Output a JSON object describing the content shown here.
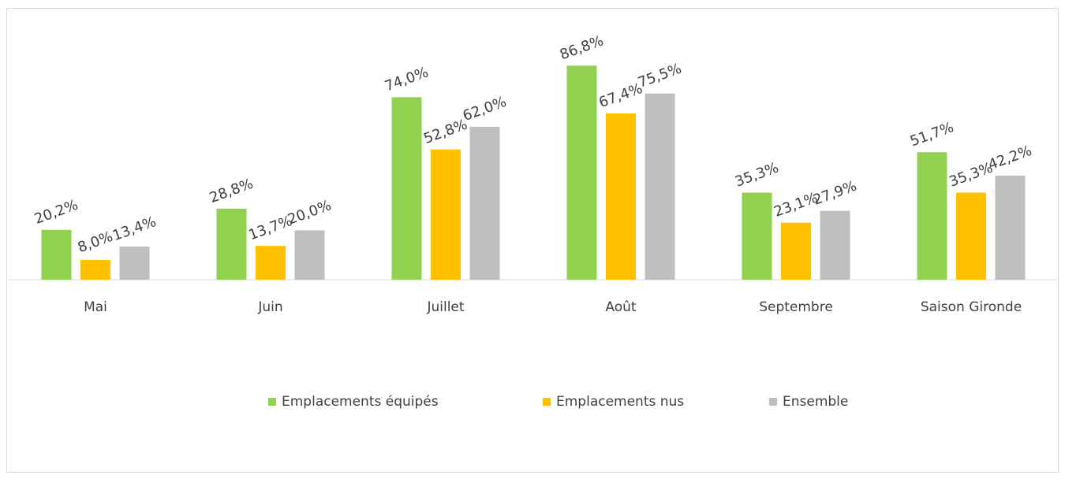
{
  "chart_data": {
    "type": "bar",
    "categories": [
      "Mai",
      "Juin",
      "Juillet",
      "Août",
      "Septembre",
      "Saison Gironde"
    ],
    "series": [
      {
        "name": "Emplacements équipés",
        "color": "#92d050",
        "values": [
          20.2,
          28.8,
          74.0,
          86.8,
          35.3,
          51.7
        ],
        "value_labels": [
          "20,2%",
          "28,8%",
          "74,0%",
          "86,8%",
          "35,3%",
          "51,7%"
        ]
      },
      {
        "name": "Emplacements nus",
        "color": "#ffc000",
        "values": [
          8.0,
          13.7,
          52.8,
          67.4,
          23.1,
          35.3
        ],
        "value_labels": [
          "8,0%",
          "13,7%",
          "52,8%",
          "67,4%",
          "23,1%",
          "35,3%"
        ]
      },
      {
        "name": "Ensemble",
        "color": "#bfbfbf",
        "values": [
          13.4,
          20.0,
          62.0,
          75.5,
          27.9,
          42.2
        ],
        "value_labels": [
          "13,4%",
          "20,0%",
          "62,0%",
          "75,5%",
          "27,9%",
          "42,2%"
        ]
      }
    ],
    "ylim": [
      0,
      100
    ],
    "legend": "bottom"
  }
}
